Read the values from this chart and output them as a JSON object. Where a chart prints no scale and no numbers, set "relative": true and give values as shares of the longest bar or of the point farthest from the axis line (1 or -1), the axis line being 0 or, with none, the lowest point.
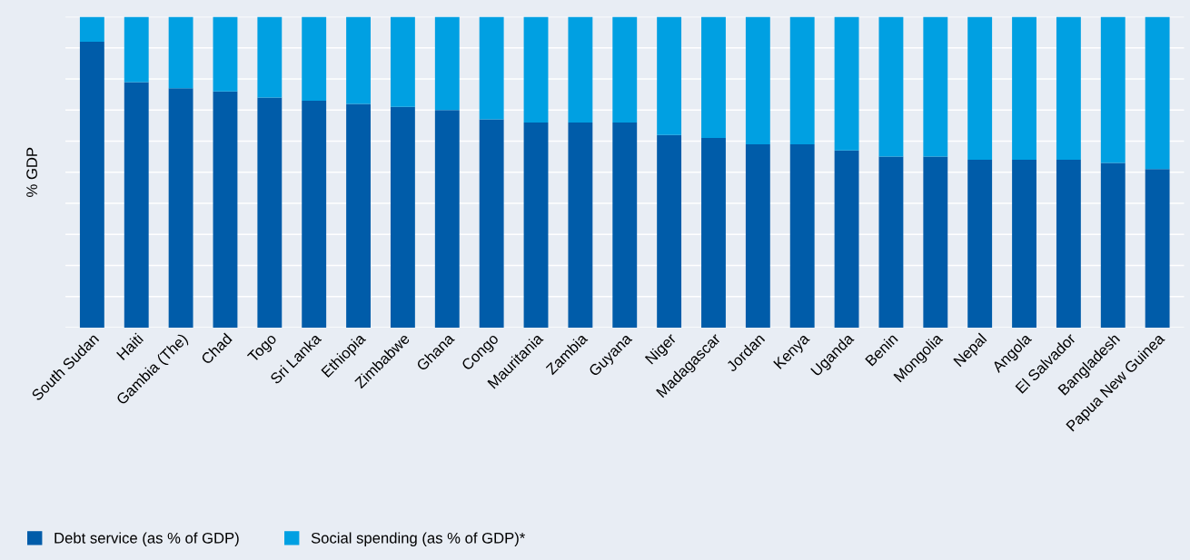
{
  "chart_data": {
    "type": "bar",
    "stacked": true,
    "relative": true,
    "ylabel": "% GDP",
    "grid": "y",
    "legend": "bottom left",
    "categories": [
      "South Sudan",
      "Haiti",
      "Gambia (The)",
      "Chad",
      "Togo",
      "Sri Lanka",
      "Ethiopia",
      "Zimbabwe",
      "Ghana",
      "Congo",
      "Mauritania",
      "Zambia",
      "Guyana",
      "Niger",
      "Madagascar",
      "Jordan",
      "Kenya",
      "Uganda",
      "Benin",
      "Mongolia",
      "Nepal",
      "Angola",
      "El Salvador",
      "Bangladesh",
      "Papua New Guinea"
    ],
    "series": [
      {
        "name": "Debt service (as % of GDP)",
        "color": "#005ca9",
        "values": [
          0.92,
          0.79,
          0.77,
          0.76,
          0.74,
          0.73,
          0.72,
          0.71,
          0.7,
          0.67,
          0.66,
          0.66,
          0.66,
          0.62,
          0.61,
          0.59,
          0.59,
          0.57,
          0.55,
          0.55,
          0.54,
          0.54,
          0.54,
          0.53,
          0.51
        ]
      },
      {
        "name": "Social spending (as % of GDP)*",
        "color": "#00a0e2",
        "values": [
          0.08,
          0.21,
          0.23,
          0.24,
          0.26,
          0.27,
          0.28,
          0.29,
          0.3,
          0.33,
          0.34,
          0.34,
          0.34,
          0.38,
          0.39,
          0.41,
          0.41,
          0.43,
          0.45,
          0.45,
          0.46,
          0.46,
          0.46,
          0.47,
          0.49
        ]
      }
    ]
  }
}
